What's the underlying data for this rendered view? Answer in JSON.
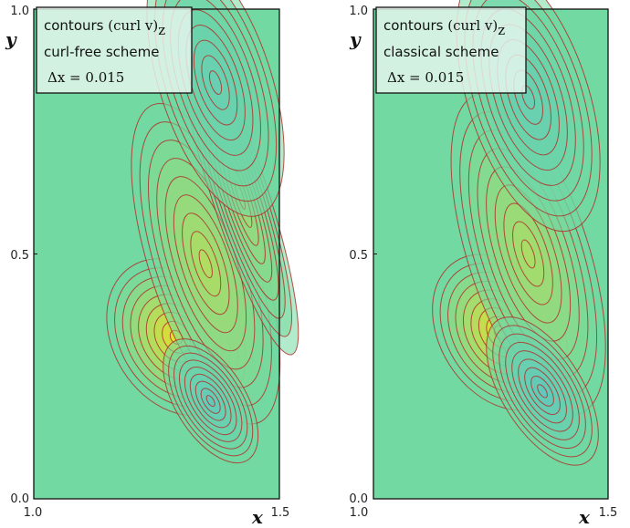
{
  "chart_data": [
    {
      "type": "heatmap",
      "style": "filled contour plot with red contour lines",
      "title_lines": [
        "contours (curl v)z",
        "curl-free scheme",
        "Δx = 0.015"
      ],
      "box_line1_text": "contours ",
      "box_line1_math": "(curl v)",
      "box_line1_sub": "z",
      "box_line2": "curl-free scheme",
      "box_line3": "Δx = 0.015",
      "xlabel": "x",
      "ylabel": "y",
      "xlim": [
        1.0,
        1.5
      ],
      "ylim": [
        0.0,
        1.0
      ],
      "xticks": [
        "1.0",
        "1.5"
      ],
      "yticks": [
        "0.0",
        "0.5",
        "1.0"
      ],
      "features": [
        {
          "kind": "positive-peak",
          "x": 1.29,
          "y": 0.33,
          "strength": 1.0,
          "sx": 0.045,
          "sy": 0.06
        },
        {
          "kind": "positive-ridge",
          "x": 1.35,
          "y": 0.48,
          "strength": 0.55,
          "sx": 0.04,
          "sy": 0.12
        },
        {
          "kind": "positive-ridge",
          "x": 1.42,
          "y": 0.62,
          "strength": 0.4,
          "sx": 0.02,
          "sy": 0.12
        },
        {
          "kind": "negative-pocket",
          "x": 1.36,
          "y": 0.2,
          "strength": -0.5,
          "sx": 0.025,
          "sy": 0.05
        },
        {
          "kind": "negative-band",
          "x": 1.37,
          "y": 0.85,
          "strength": -0.35,
          "sx": 0.04,
          "sy": 0.1
        }
      ],
      "colors": {
        "background": "#72d9a2",
        "positive": "#f0e020",
        "negative": "#52b8d6",
        "contour": "#b0302a"
      }
    },
    {
      "type": "heatmap",
      "style": "filled contour plot with red contour lines",
      "title_lines": [
        "contours (curl v)z",
        "classical scheme",
        "Δx = 0.015"
      ],
      "box_line1_text": "contours ",
      "box_line1_math": "(curl v)",
      "box_line1_sub": "z",
      "box_line2": "classical scheme",
      "box_line3": "Δx = 0.015",
      "xlabel": "x",
      "ylabel": "y",
      "xlim": [
        1.0,
        1.5
      ],
      "ylim": [
        0.0,
        1.0
      ],
      "xticks": [
        "1.0",
        "1.5"
      ],
      "yticks": [
        "0.0",
        "0.5",
        "1.0"
      ],
      "features": [
        {
          "kind": "positive-peak",
          "x": 1.27,
          "y": 0.34,
          "strength": 1.0,
          "sx": 0.045,
          "sy": 0.06
        },
        {
          "kind": "positive-ridge",
          "x": 1.33,
          "y": 0.5,
          "strength": 0.5,
          "sx": 0.045,
          "sy": 0.12
        },
        {
          "kind": "negative-pocket",
          "x": 1.36,
          "y": 0.22,
          "strength": -0.55,
          "sx": 0.03,
          "sy": 0.06
        },
        {
          "kind": "negative-band",
          "x": 1.33,
          "y": 0.82,
          "strength": -0.35,
          "sx": 0.045,
          "sy": 0.1
        }
      ],
      "colors": {
        "background": "#72d9a2",
        "positive": "#f0e020",
        "negative": "#52b8d6",
        "contour": "#b0302a"
      }
    }
  ]
}
